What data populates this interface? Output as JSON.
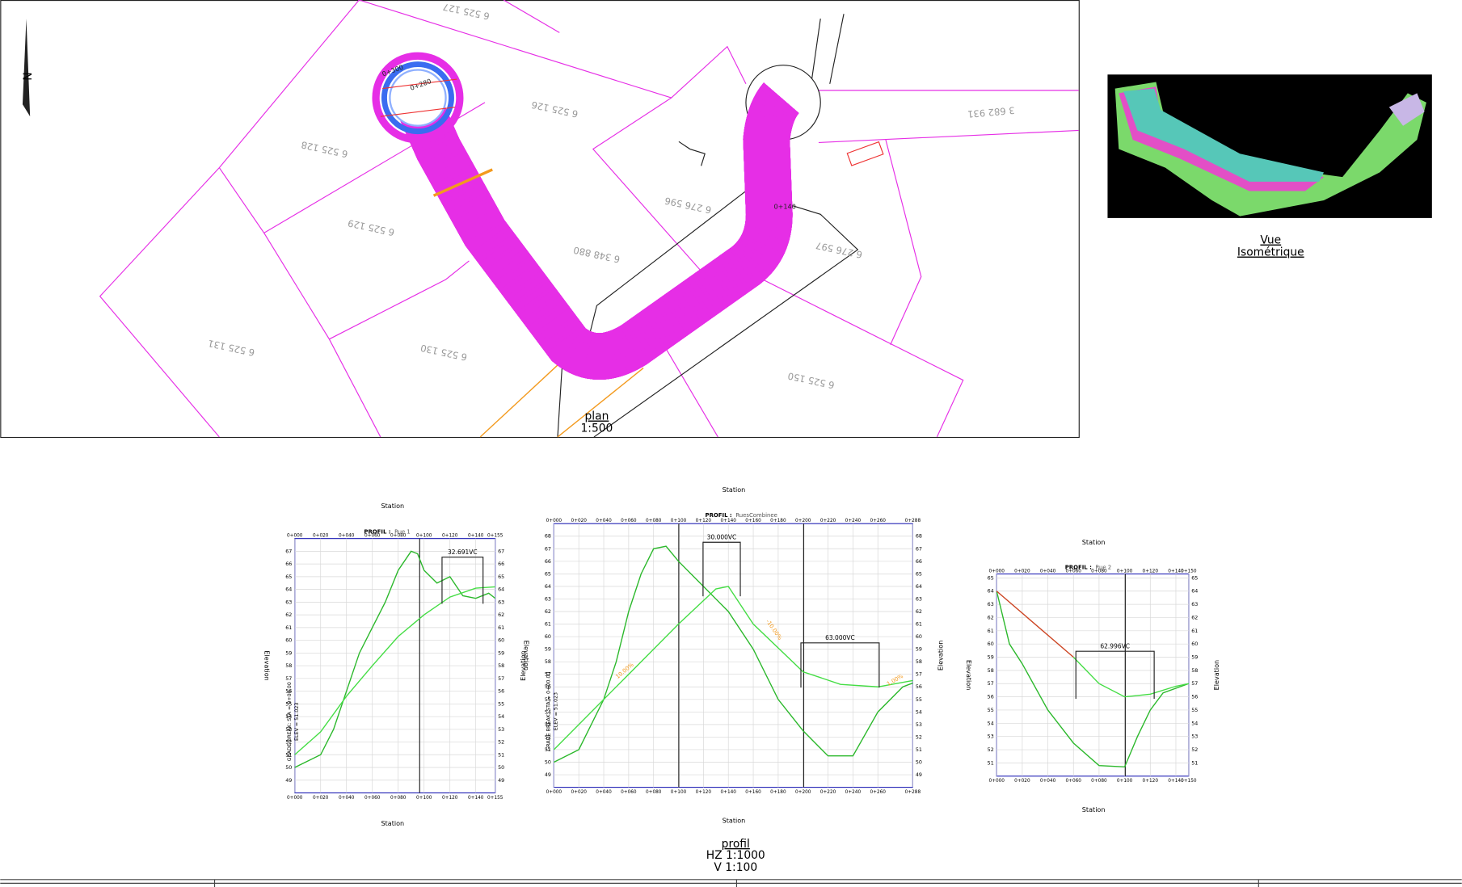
{
  "plan": {
    "title": "plan",
    "scale": "1:500",
    "lots": [
      "6 525 127",
      "6 525 126",
      "6 525 128",
      "6 525 129",
      "6 348 880",
      "6 276 596",
      "6 276 597",
      "6 525 131",
      "6 525 130",
      "6 525 150",
      "3 682 931"
    ],
    "stations": [
      "0+280",
      "0+300",
      "0+140"
    ]
  },
  "iso": {
    "line1": "Vue",
    "line2": "Isométrique"
  },
  "profil": {
    "title": "profil",
    "hz": "HZ  1:1000",
    "v": "V  1:100"
  },
  "profiles": [
    {
      "label": "PROFIL :",
      "name": "Rue 1",
      "x_title": "Station",
      "y_title": "Elevation",
      "xlim": [
        0,
        155
      ],
      "ylim": [
        48,
        68
      ],
      "xticks": [
        {
          "value": 0,
          "label": "0+000"
        },
        {
          "value": 20,
          "label": "0+020"
        },
        {
          "value": 40,
          "label": "0+040"
        },
        {
          "value": 60,
          "label": "0+060"
        },
        {
          "value": 80,
          "label": "0+080"
        },
        {
          "value": 100,
          "label": "0+100"
        },
        {
          "value": 120,
          "label": "0+120"
        },
        {
          "value": 140,
          "label": "0+140"
        },
        {
          "value": 155,
          "label": "0+155"
        }
      ],
      "yticks": [
        49,
        50,
        51,
        52,
        53,
        54,
        55,
        56,
        57,
        58,
        59,
        60,
        61,
        62,
        63,
        64,
        65,
        66,
        67
      ],
      "series": [
        {
          "color": "#2bb82b",
          "x": [
            0,
            10,
            20,
            30,
            40,
            50,
            60,
            70,
            80,
            90,
            95,
            100,
            110,
            120,
            130,
            140,
            150,
            155
          ],
          "values": [
            50,
            50.5,
            51,
            53,
            56,
            59,
            61,
            63,
            65.5,
            67,
            66.8,
            65.5,
            64.5,
            65,
            63.5,
            63.3,
            63.7,
            63.3
          ]
        },
        {
          "color": "#44dd44",
          "x": [
            0,
            20,
            40,
            60,
            80,
            100,
            120,
            140,
            155
          ],
          "values": [
            51,
            52.8,
            55.6,
            58,
            60.3,
            62,
            63.4,
            64.1,
            64.2
          ]
        }
      ],
      "vc": [
        "32.691VC"
      ],
      "grade_break": "GRADE BREAK: STA = 0+00.00",
      "elev": "ELEV = 51.023"
    },
    {
      "label": "PROFIL :",
      "name": "RuesCombinee",
      "x_title": "Station",
      "y_title": "Elevation",
      "xlim": [
        0,
        288
      ],
      "ylim": [
        48,
        69
      ],
      "xticks": [
        {
          "value": 0,
          "label": "0+000"
        },
        {
          "value": 20,
          "label": "0+020"
        },
        {
          "value": 40,
          "label": "0+040"
        },
        {
          "value": 60,
          "label": "0+060"
        },
        {
          "value": 80,
          "label": "0+080"
        },
        {
          "value": 100,
          "label": "0+100"
        },
        {
          "value": 120,
          "label": "0+120"
        },
        {
          "value": 140,
          "label": "0+140"
        },
        {
          "value": 160,
          "label": "0+160"
        },
        {
          "value": 180,
          "label": "0+180"
        },
        {
          "value": 200,
          "label": "0+200"
        },
        {
          "value": 220,
          "label": "0+220"
        },
        {
          "value": 240,
          "label": "0+240"
        },
        {
          "value": 260,
          "label": "0+260"
        },
        {
          "value": 288,
          "label": "0+288"
        }
      ],
      "yticks": [
        49,
        50,
        51,
        52,
        53,
        54,
        55,
        56,
        57,
        58,
        59,
        60,
        61,
        62,
        63,
        64,
        65,
        66,
        67,
        68
      ],
      "series": [
        {
          "color": "#2bb82b",
          "x": [
            0,
            20,
            40,
            50,
            60,
            70,
            80,
            90,
            100,
            120,
            140,
            160,
            180,
            200,
            220,
            240,
            260,
            280,
            288
          ],
          "values": [
            50,
            51,
            55,
            58,
            62,
            65,
            67,
            67.2,
            66,
            64,
            62,
            59,
            55,
            52.5,
            50.5,
            50.5,
            54,
            56,
            56.3
          ]
        },
        {
          "color": "#44dd44",
          "x": [
            0,
            60,
            100,
            130,
            140,
            160,
            200,
            230,
            260,
            288
          ],
          "values": [
            51,
            57,
            61,
            63.8,
            64,
            61,
            57.2,
            56.2,
            56,
            56.5
          ]
        }
      ],
      "vc": [
        "30.000VC",
        "63.000VC"
      ],
      "grades": [
        "10.00%",
        "-10.00%",
        "1.00%"
      ],
      "grade_break": "GRADE BREAK: STA = 0+00.00",
      "elev": "ELEV = 51.023"
    },
    {
      "label": "PROFIL :",
      "name": "Rue 2",
      "x_title": "Station",
      "y_title": "Elevation",
      "xlim": [
        0,
        150
      ],
      "ylim": [
        50,
        65.3
      ],
      "xticks": [
        {
          "value": 0,
          "label": "0+000"
        },
        {
          "value": 20,
          "label": "0+020"
        },
        {
          "value": 40,
          "label": "0+040"
        },
        {
          "value": 60,
          "label": "0+060"
        },
        {
          "value": 80,
          "label": "0+080"
        },
        {
          "value": 100,
          "label": "0+100"
        },
        {
          "value": 120,
          "label": "0+120"
        },
        {
          "value": 140,
          "label": "0+140"
        },
        {
          "value": 150,
          "label": "0+150"
        }
      ],
      "yticks": [
        51,
        52,
        53,
        54,
        55,
        56,
        57,
        58,
        59,
        60,
        61,
        62,
        63,
        64,
        65
      ],
      "series": [
        {
          "color": "#2bb82b",
          "x": [
            0,
            10,
            20,
            40,
            60,
            80,
            100,
            110,
            120,
            130,
            150
          ],
          "values": [
            64,
            60,
            58.5,
            55,
            52.5,
            50.8,
            50.7,
            53,
            55,
            56.3,
            57
          ]
        },
        {
          "color": "#cc4422",
          "x": [
            0,
            60
          ],
          "values": [
            64,
            59
          ]
        },
        {
          "color": "#44dd44",
          "x": [
            60,
            80,
            100,
            120,
            140,
            150
          ],
          "values": [
            59,
            57,
            56,
            56.2,
            56.8,
            57
          ]
        }
      ],
      "vc": [
        "62.996VC"
      ]
    }
  ]
}
